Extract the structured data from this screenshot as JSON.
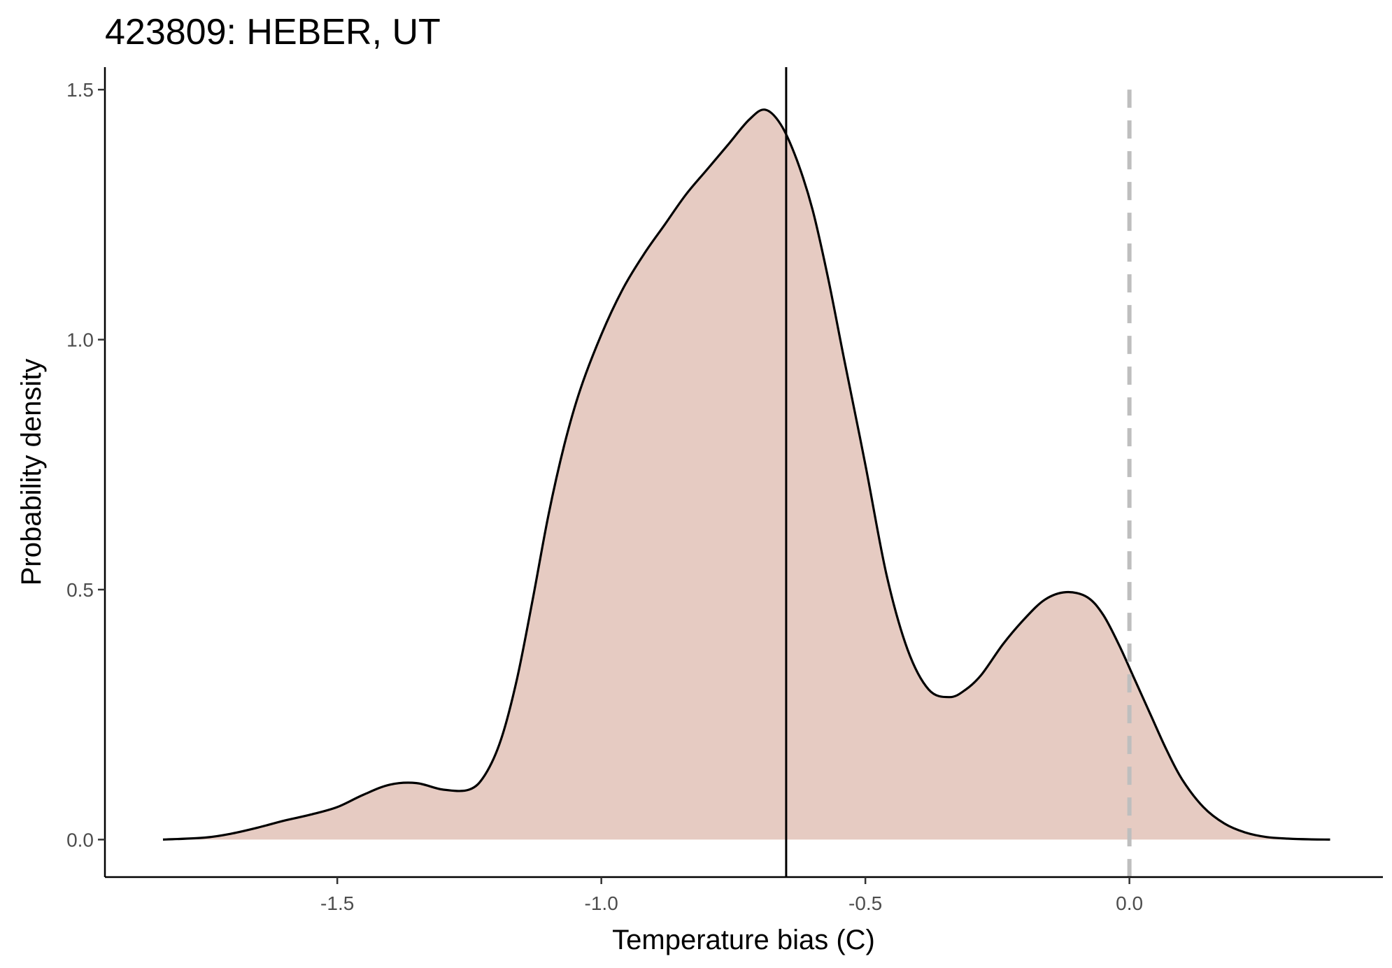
{
  "chart_data": {
    "type": "area",
    "title": "423809: HEBER, UT",
    "xlabel": "Temperature bias (C)",
    "ylabel": "Probability density",
    "xlim": [
      -1.94,
      0.48
    ],
    "ylim": [
      -0.075,
      1.545
    ],
    "x_ticks": [
      -1.5,
      -1.0,
      -0.5,
      0.0
    ],
    "x_tick_labels": [
      "-1.5",
      "-1.0",
      "-0.5",
      "0.0"
    ],
    "y_ticks": [
      0.0,
      0.5,
      1.0,
      1.5
    ],
    "y_tick_labels": [
      "0.0",
      "0.5",
      "1.0",
      "1.5"
    ],
    "grid": false,
    "legend": "none",
    "series": [
      {
        "x": [
          -1.83,
          -1.75,
          -1.7,
          -1.65,
          -1.6,
          -1.55,
          -1.5,
          -1.45,
          -1.4,
          -1.35,
          -1.3,
          -1.25,
          -1.22,
          -1.19,
          -1.16,
          -1.13,
          -1.1,
          -1.07,
          -1.04,
          -1.0,
          -0.96,
          -0.92,
          -0.88,
          -0.84,
          -0.8,
          -0.76,
          -0.72,
          -0.69,
          -0.66,
          -0.63,
          -0.6,
          -0.57,
          -0.54,
          -0.5,
          -0.46,
          -0.42,
          -0.38,
          -0.34,
          -0.31,
          -0.28,
          -0.24,
          -0.2,
          -0.16,
          -0.12,
          -0.08,
          -0.05,
          -0.02,
          0.01,
          0.04,
          0.07,
          0.1,
          0.14,
          0.18,
          0.22,
          0.26,
          0.3,
          0.34,
          0.38
        ],
        "y": [
          0.0,
          0.004,
          0.012,
          0.024,
          0.038,
          0.05,
          0.065,
          0.09,
          0.11,
          0.113,
          0.1,
          0.1,
          0.13,
          0.2,
          0.32,
          0.48,
          0.65,
          0.79,
          0.9,
          1.01,
          1.1,
          1.17,
          1.23,
          1.29,
          1.34,
          1.39,
          1.44,
          1.46,
          1.43,
          1.36,
          1.26,
          1.12,
          0.96,
          0.75,
          0.53,
          0.38,
          0.3,
          0.285,
          0.3,
          0.33,
          0.39,
          0.44,
          0.48,
          0.495,
          0.485,
          0.45,
          0.39,
          0.32,
          0.25,
          0.18,
          0.12,
          0.065,
          0.032,
          0.014,
          0.005,
          0.002,
          0.0005,
          0.0
        ],
        "fill_color": "#e6cbc2",
        "line_color": "#000000"
      }
    ],
    "annotations": [
      {
        "type": "vline",
        "x": -0.65,
        "style": "solid",
        "color": "#000000"
      },
      {
        "type": "vline",
        "x": 0.0,
        "style": "dashed",
        "color": "#bebebe"
      }
    ]
  }
}
